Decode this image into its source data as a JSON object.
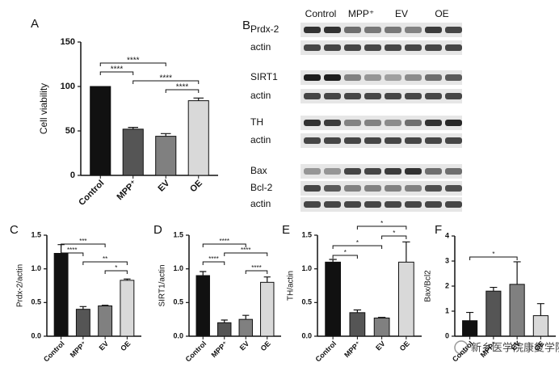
{
  "chart_data": [
    {
      "type": "bar",
      "panel_label": "A",
      "y_label": "Cell viability",
      "categories": [
        "Control",
        "MPP⁺",
        "EV",
        "OE"
      ],
      "values": [
        100,
        52,
        44,
        84
      ],
      "errors": [
        null,
        2,
        3,
        3
      ],
      "colors": [
        "#111111",
        "#555555",
        "#808080",
        "#d9d9d9"
      ],
      "ylim": [
        0,
        150
      ],
      "yticks": [
        0,
        50,
        100,
        150
      ],
      "comparisons": [
        {
          "pair": [
            0,
            2
          ],
          "label": "****"
        },
        {
          "pair": [
            0,
            1
          ],
          "label": "****"
        },
        {
          "pair": [
            1,
            3
          ],
          "label": "****"
        },
        {
          "pair": [
            2,
            3
          ],
          "label": "****"
        }
      ]
    },
    {
      "type": "bar",
      "panel_label": "C",
      "y_label": "Prdx-2/actin",
      "categories": [
        "Control",
        "MPP⁺",
        "EV",
        "OE"
      ],
      "values": [
        1.23,
        0.4,
        0.45,
        0.83
      ],
      "errors": [
        0.13,
        0.04,
        0.01,
        0.02
      ],
      "colors": [
        "#111111",
        "#555555",
        "#808080",
        "#d9d9d9"
      ],
      "ylim": [
        0,
        1.5
      ],
      "yticks": [
        {
          "value": 0,
          "label": "0.0"
        },
        0.5,
        {
          "value": 1,
          "label": "1.0"
        },
        1.5
      ],
      "comparisons": [
        {
          "pair": [
            0,
            2
          ],
          "label": "***"
        },
        {
          "pair": [
            0,
            1
          ],
          "label": "****"
        },
        {
          "pair": [
            1,
            3
          ],
          "label": "**"
        },
        {
          "pair": [
            2,
            3
          ],
          "label": "*"
        }
      ]
    },
    {
      "type": "bar",
      "panel_label": "D",
      "y_label": "SIRT1/actin",
      "categories": [
        "Control",
        "MPP⁺",
        "EV",
        "OE"
      ],
      "values": [
        0.9,
        0.2,
        0.25,
        0.8
      ],
      "errors": [
        0.06,
        0.04,
        0.06,
        0.08
      ],
      "colors": [
        "#111111",
        "#555555",
        "#808080",
        "#d9d9d9"
      ],
      "ylim": [
        0,
        1.5
      ],
      "yticks": [
        {
          "value": 0,
          "label": "0.0"
        },
        0.5,
        {
          "value": 1,
          "label": "1.0"
        },
        1.5
      ],
      "comparisons": [
        {
          "pair": [
            0,
            2
          ],
          "label": "****"
        },
        {
          "pair": [
            1,
            3
          ],
          "label": "****"
        },
        {
          "pair": [
            0,
            1
          ],
          "label": "****"
        },
        {
          "pair": [
            2,
            3
          ],
          "label": "****"
        }
      ]
    },
    {
      "type": "bar",
      "panel_label": "E",
      "y_label": "TH/actin",
      "categories": [
        "Control",
        "MPP⁺",
        "EV",
        "OE"
      ],
      "values": [
        1.1,
        0.35,
        0.27,
        1.1
      ],
      "errors": [
        0.04,
        0.04,
        0.01,
        0.3
      ],
      "colors": [
        "#111111",
        "#555555",
        "#808080",
        "#d9d9d9"
      ],
      "ylim": [
        0,
        1.5
      ],
      "yticks": [
        {
          "value": 0,
          "label": "0.0"
        },
        0.5,
        {
          "value": 1,
          "label": "1.0"
        },
        1.5
      ],
      "comparisons": [
        {
          "pair": [
            1,
            3
          ],
          "label": "*"
        },
        {
          "pair": [
            2,
            3
          ],
          "label": "*"
        },
        {
          "pair": [
            0,
            2
          ],
          "label": "*"
        },
        {
          "pair": [
            0,
            1
          ],
          "label": "*"
        }
      ]
    },
    {
      "type": "bar",
      "panel_label": "F",
      "y_label": "Bax/Bcl2",
      "categories": [
        "Control",
        "MPP⁺",
        "EV",
        "OE"
      ],
      "values": [
        0.62,
        1.8,
        2.07,
        0.82
      ],
      "errors": [
        0.33,
        0.15,
        0.9,
        0.48
      ],
      "colors": [
        "#111111",
        "#555555",
        "#808080",
        "#d9d9d9"
      ],
      "ylim": [
        0,
        4
      ],
      "yticks": [
        0,
        1,
        2,
        3,
        4
      ],
      "comparisons": [
        {
          "pair": [
            0,
            2
          ],
          "label": "*"
        }
      ]
    }
  ],
  "blot": {
    "panel_label": "B",
    "columns": [
      "Control",
      "MPP⁺",
      "EV",
      "OE"
    ],
    "rows": [
      "Prdx-2",
      "actin",
      "SIRT1",
      "actin",
      "TH",
      "actin",
      "Bax",
      "Bcl-2",
      "actin"
    ]
  },
  "watermark": "新乡医学院康复学院"
}
